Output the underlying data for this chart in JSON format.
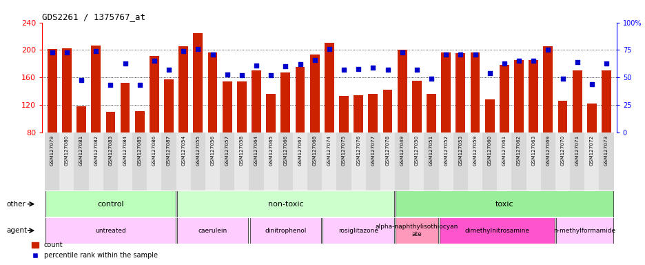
{
  "title": "GDS2261 / 1375767_at",
  "samples": [
    "GSM127079",
    "GSM127080",
    "GSM127081",
    "GSM127082",
    "GSM127083",
    "GSM127084",
    "GSM127085",
    "GSM127086",
    "GSM127087",
    "GSM127054",
    "GSM127055",
    "GSM127056",
    "GSM127057",
    "GSM127058",
    "GSM127064",
    "GSM127065",
    "GSM127066",
    "GSM127067",
    "GSM127068",
    "GSM127074",
    "GSM127075",
    "GSM127076",
    "GSM127077",
    "GSM127078",
    "GSM127049",
    "GSM127050",
    "GSM127051",
    "GSM127052",
    "GSM127053",
    "GSM127059",
    "GSM127060",
    "GSM127061",
    "GSM127062",
    "GSM127063",
    "GSM127069",
    "GSM127070",
    "GSM127071",
    "GSM127072",
    "GSM127073"
  ],
  "counts": [
    201,
    202,
    118,
    207,
    110,
    152,
    111,
    191,
    157,
    205,
    225,
    196,
    154,
    154,
    170,
    136,
    167,
    175,
    193,
    211,
    133,
    134,
    136,
    142,
    200,
    155,
    136,
    196,
    195,
    196,
    128,
    178,
    185,
    185,
    205,
    126,
    170,
    122,
    170
  ],
  "percentile_ranks": [
    73,
    73,
    48,
    74,
    43,
    63,
    43,
    65,
    57,
    74,
    76,
    71,
    53,
    52,
    61,
    52,
    60,
    62,
    66,
    76,
    57,
    58,
    59,
    57,
    73,
    57,
    49,
    71,
    71,
    71,
    54,
    63,
    65,
    65,
    75,
    49,
    64,
    44,
    63
  ],
  "ylim_left": [
    80,
    240
  ],
  "ylim_right": [
    0,
    100
  ],
  "yticks_left": [
    80,
    120,
    160,
    200,
    240
  ],
  "yticks_right": [
    0,
    25,
    50,
    75,
    100
  ],
  "bar_color": "#cc2200",
  "dot_color": "#0000cc",
  "other_groups": [
    {
      "label": "control",
      "start": 0,
      "end": 9,
      "color": "#bbffbb"
    },
    {
      "label": "non-toxic",
      "start": 9,
      "end": 24,
      "color": "#ccffcc"
    },
    {
      "label": "toxic",
      "start": 24,
      "end": 39,
      "color": "#99ee99"
    }
  ],
  "agent_groups": [
    {
      "label": "untreated",
      "start": 0,
      "end": 9,
      "color": "#ffccff"
    },
    {
      "label": "caerulein",
      "start": 9,
      "end": 14,
      "color": "#ffccff"
    },
    {
      "label": "dinitrophenol",
      "start": 14,
      "end": 19,
      "color": "#ffccff"
    },
    {
      "label": "rosiglitazone",
      "start": 19,
      "end": 24,
      "color": "#ffccff"
    },
    {
      "label": "alpha-naphthylisothiocyan\nate",
      "start": 24,
      "end": 27,
      "color": "#ff99bb"
    },
    {
      "label": "dimethylnitrosamine",
      "start": 27,
      "end": 35,
      "color": "#ff55cc"
    },
    {
      "label": "n-methylformamide",
      "start": 35,
      "end": 39,
      "color": "#ffccff"
    }
  ]
}
